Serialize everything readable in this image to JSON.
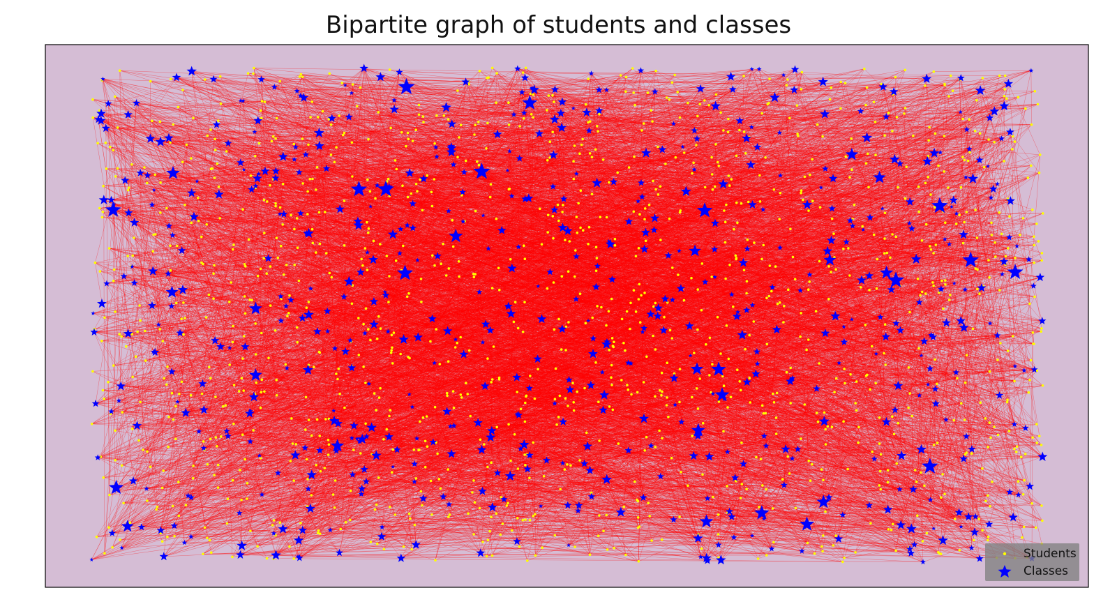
{
  "chart_data": {
    "type": "scatter",
    "title": "Bipartite graph of students and classes",
    "xlabel": "",
    "ylabel": "",
    "axes_visible": false,
    "grid": false,
    "background_color": "#d5bdd5",
    "edge_color": "#ff0000",
    "legend_location": "lower right",
    "series": [
      {
        "name": "Students",
        "marker": "dot",
        "color": "#ffff00",
        "approx_count": 1400
      },
      {
        "name": "Classes",
        "marker": "star",
        "color": "#0000ff",
        "approx_count": 650
      }
    ],
    "edges": {
      "description_free": true,
      "approx_count": 9000
    }
  },
  "legend": {
    "students_label": "Students",
    "classes_label": "Classes"
  }
}
